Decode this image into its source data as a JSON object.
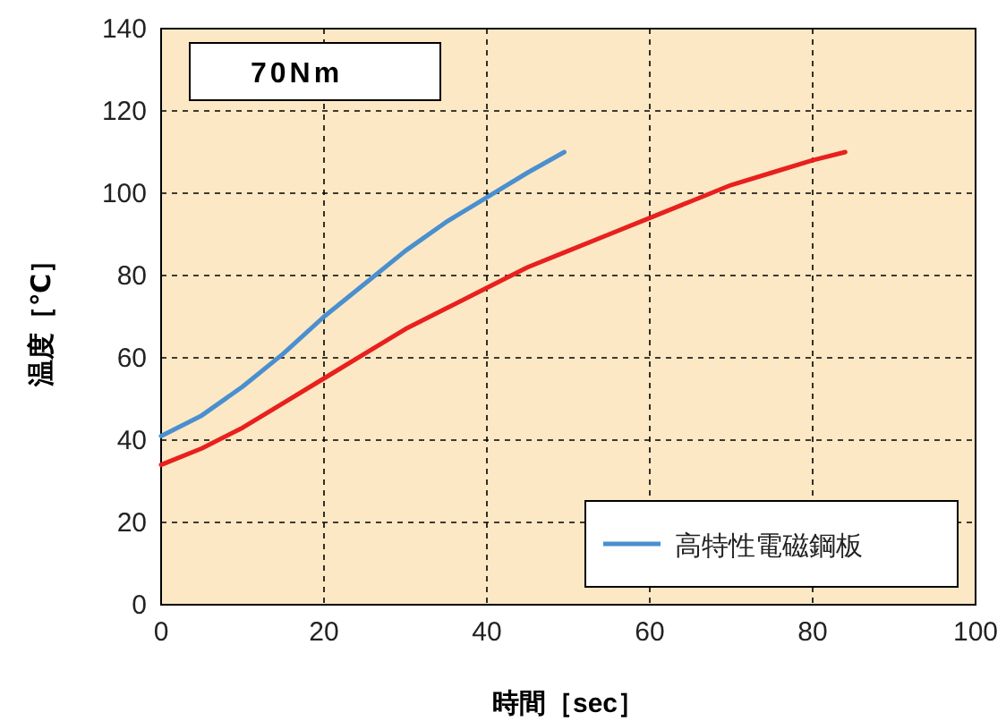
{
  "chart_data": {
    "type": "line",
    "xlabel": "時間［sec］",
    "ylabel": "温度［℃］",
    "annotations": [
      "70Nm"
    ],
    "xlim": [
      0,
      100
    ],
    "xticks": [
      0,
      20,
      40,
      60,
      80,
      100
    ],
    "ylim": [
      0,
      140
    ],
    "yticks": [
      0,
      20,
      40,
      60,
      80,
      100,
      120,
      140
    ],
    "grid": true,
    "legend": "bottom right",
    "series": [
      {
        "name": "高特性電磁鋼板",
        "color": "#4a8fcf",
        "x": [
          0,
          5,
          10,
          15,
          20,
          25,
          30,
          35,
          40,
          45,
          49.5
        ],
        "values": [
          41,
          46,
          53,
          61,
          70,
          78,
          86,
          93,
          99,
          105,
          110
        ]
      },
      {
        "color": "#e8201e",
        "x": [
          0,
          5,
          10,
          15,
          20,
          25,
          30,
          35,
          40,
          45,
          50,
          55,
          60,
          65,
          70,
          75,
          80,
          84
        ],
        "values": [
          34,
          38,
          43,
          49,
          55,
          61,
          67,
          72,
          77,
          82,
          86,
          90,
          94,
          98,
          102,
          105,
          108,
          110
        ]
      }
    ]
  }
}
